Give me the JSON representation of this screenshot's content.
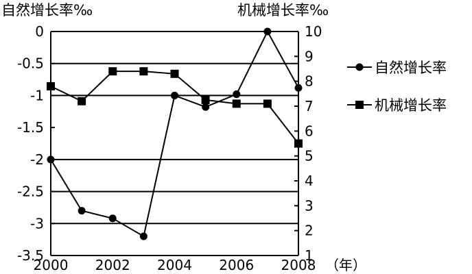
{
  "chart_data": {
    "type": "line",
    "x_unit": "（年）",
    "x_ticks": [
      "2000",
      "2002",
      "2004",
      "2006",
      "2008"
    ],
    "left_axis": {
      "title": "自然增长率‰",
      "range": [
        -3.5,
        0
      ],
      "ticks": [
        0,
        -0.5,
        -1,
        -1.5,
        -2,
        -2.5,
        -3,
        -3.5
      ],
      "tick_labels": [
        "0",
        "-0.5",
        "-1",
        "-1.5",
        "-2",
        "-2.5",
        "-3",
        "-3.5"
      ]
    },
    "right_axis": {
      "title": "机械增长率‰",
      "range": [
        1,
        10
      ],
      "ticks": [
        1,
        2,
        3,
        4,
        5,
        6,
        7,
        8,
        9,
        10
      ],
      "tick_labels": [
        "1",
        "2",
        "3",
        "4",
        "5",
        "6",
        "7",
        "8",
        "9",
        "10"
      ]
    },
    "grid_left_values": [
      -0.5,
      -1,
      -2,
      -2.5,
      -3
    ],
    "series": [
      {
        "name": "自然增长率",
        "axis": "left",
        "marker": "circle",
        "x": [
          2000,
          2001,
          2002,
          2003,
          2004,
          2005,
          2006,
          2007,
          2008
        ],
        "values": [
          -2.0,
          -2.8,
          -2.92,
          -3.2,
          -1.0,
          -1.18,
          -0.98,
          0.0,
          -0.88
        ]
      },
      {
        "name": "机械增长率",
        "axis": "right",
        "marker": "square",
        "x": [
          2000,
          2001,
          2002,
          2003,
          2004,
          2005,
          2006,
          2007,
          2008
        ],
        "values": [
          7.8,
          7.2,
          8.4,
          8.4,
          8.3,
          7.25,
          7.1,
          7.1,
          5.5
        ]
      }
    ],
    "legend_position": "right"
  }
}
